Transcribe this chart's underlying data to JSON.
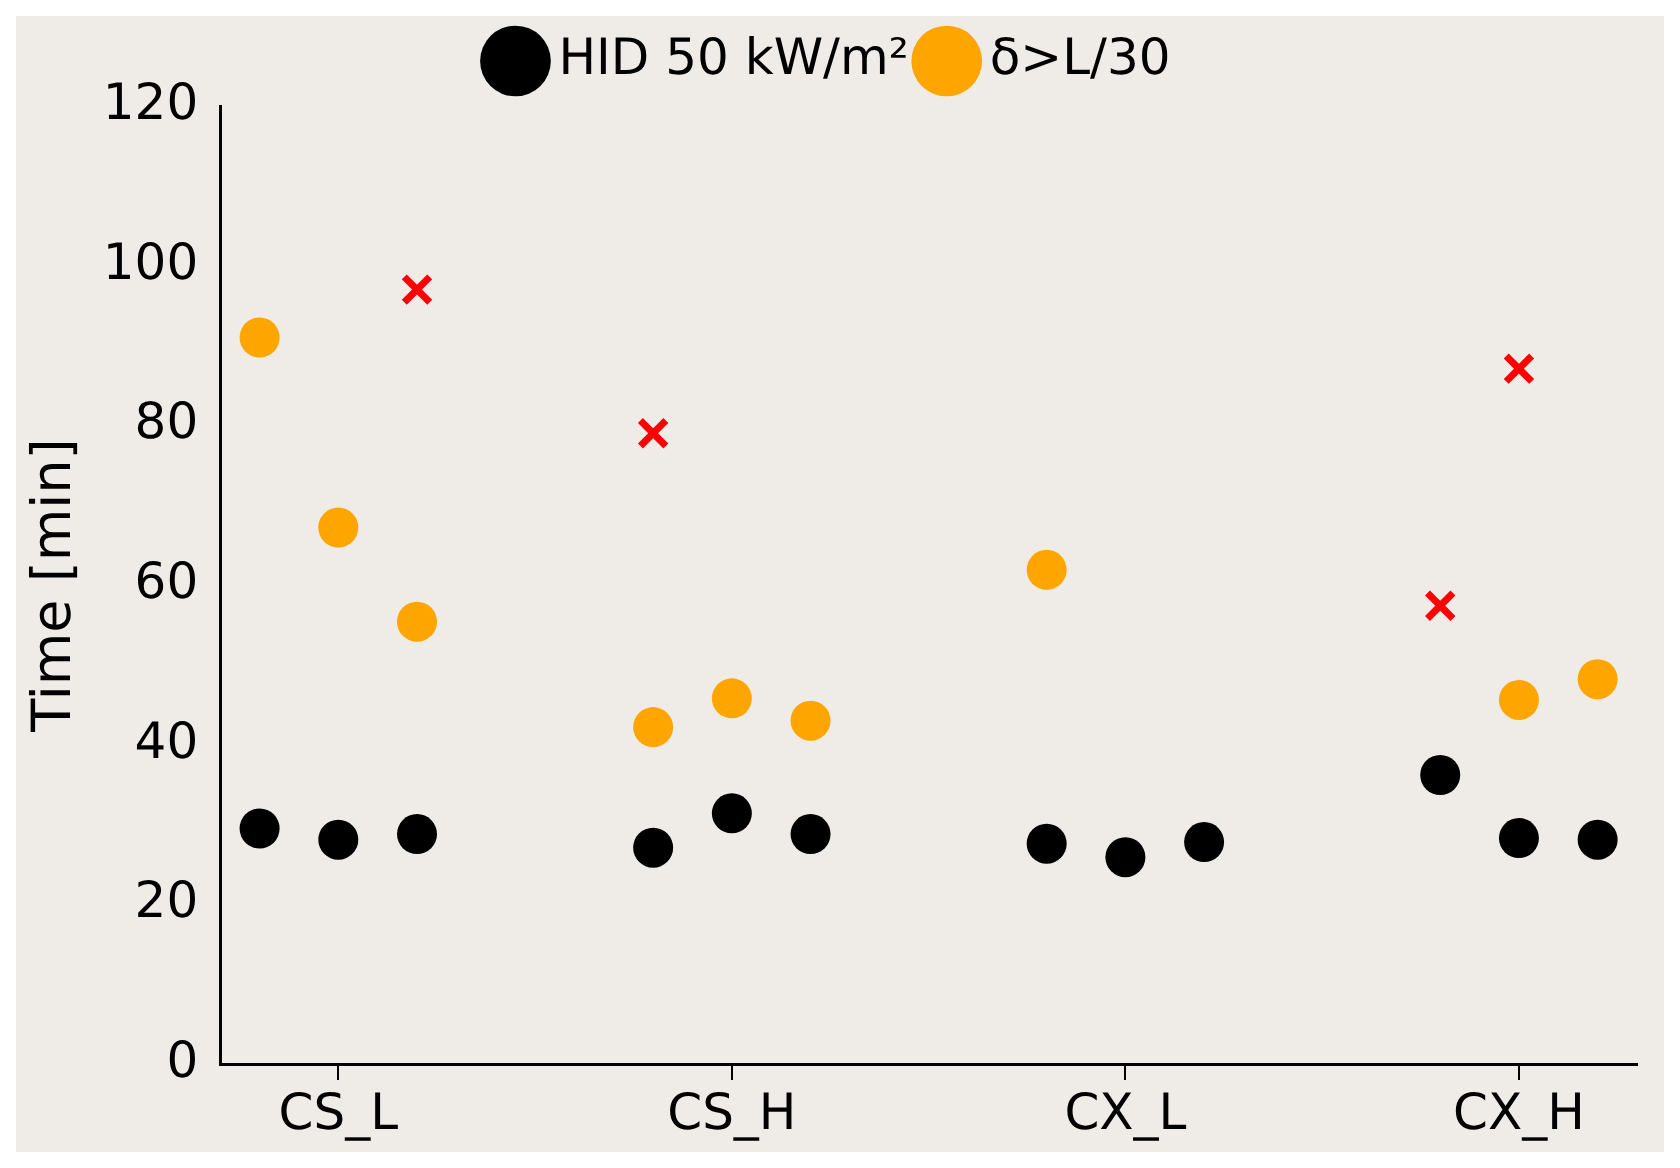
{
  "chart_data": {
    "type": "scatter",
    "ylabel": "Time [min]",
    "categories": [
      null,
      "CS_L",
      null,
      null,
      null,
      null,
      "CS_H",
      null,
      null,
      null,
      null,
      "CX_L",
      null,
      null,
      null,
      null,
      "CX_H",
      null
    ],
    "ylim": [
      0,
      120
    ],
    "yticks": [
      0,
      20,
      40,
      60,
      80,
      100,
      120
    ],
    "grid": false,
    "legend": "top",
    "series": [
      {
        "name": "HID 50 kW/m²",
        "color": "#000000",
        "marker": "circle",
        "values": [
          29.5,
          28.1,
          28.8,
          null,
          null,
          27.1,
          31.4,
          28.8,
          null,
          null,
          27.6,
          25.9,
          27.8,
          null,
          null,
          36.2,
          28.3,
          28.1
        ]
      },
      {
        "name": "δ>L/30",
        "color": "#ffa500",
        "marker": "circle",
        "values": [
          91,
          67.2,
          55.4,
          null,
          null,
          42.2,
          45.8,
          43,
          null,
          null,
          61.9,
          null,
          null,
          null,
          null,
          null,
          45.6,
          48.2
        ]
      },
      {
        "color": "#ff0000",
        "marker": "cross",
        "values": [
          null,
          null,
          97,
          null,
          null,
          79,
          null,
          null,
          null,
          null,
          null,
          null,
          null,
          null,
          null,
          57.4,
          87.1,
          null
        ]
      }
    ]
  }
}
